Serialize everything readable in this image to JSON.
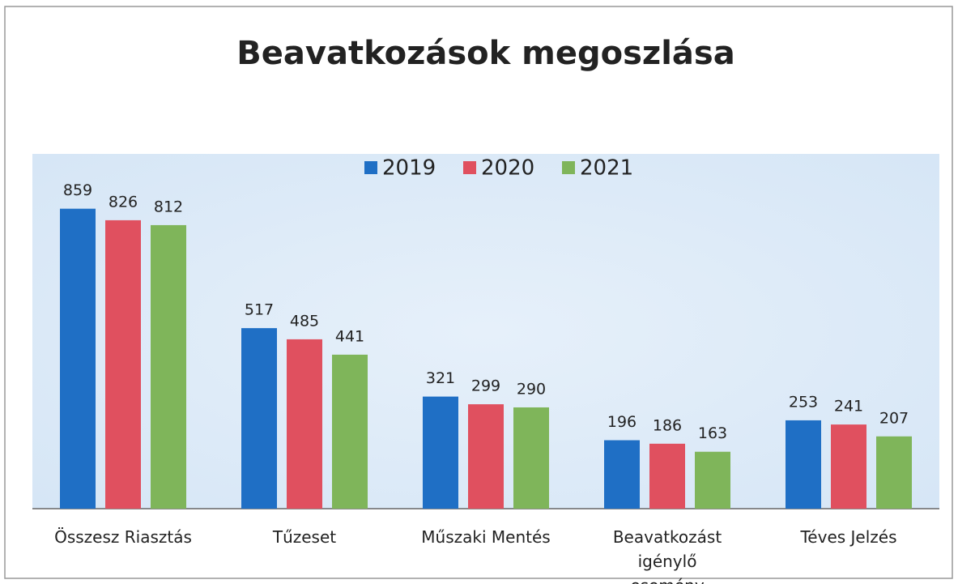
{
  "chart_data": {
    "type": "bar",
    "title": "Beavatkozások megoszlása",
    "categories": [
      "Összesz Riasztás",
      "Tűzeset",
      "Műszaki Mentés",
      "Beavatkozást igénylő esemény",
      "Téves Jelzés"
    ],
    "series": [
      {
        "name": "2019",
        "color": "#1f6fc5",
        "values": [
          859,
          517,
          321,
          196,
          253
        ]
      },
      {
        "name": "2020",
        "color": "#e0505f",
        "values": [
          826,
          485,
          299,
          186,
          241
        ]
      },
      {
        "name": "2021",
        "color": "#7fb55a",
        "values": [
          812,
          441,
          290,
          163,
          207
        ]
      }
    ],
    "ylim": [
      0,
      900
    ],
    "legend": "top"
  }
}
